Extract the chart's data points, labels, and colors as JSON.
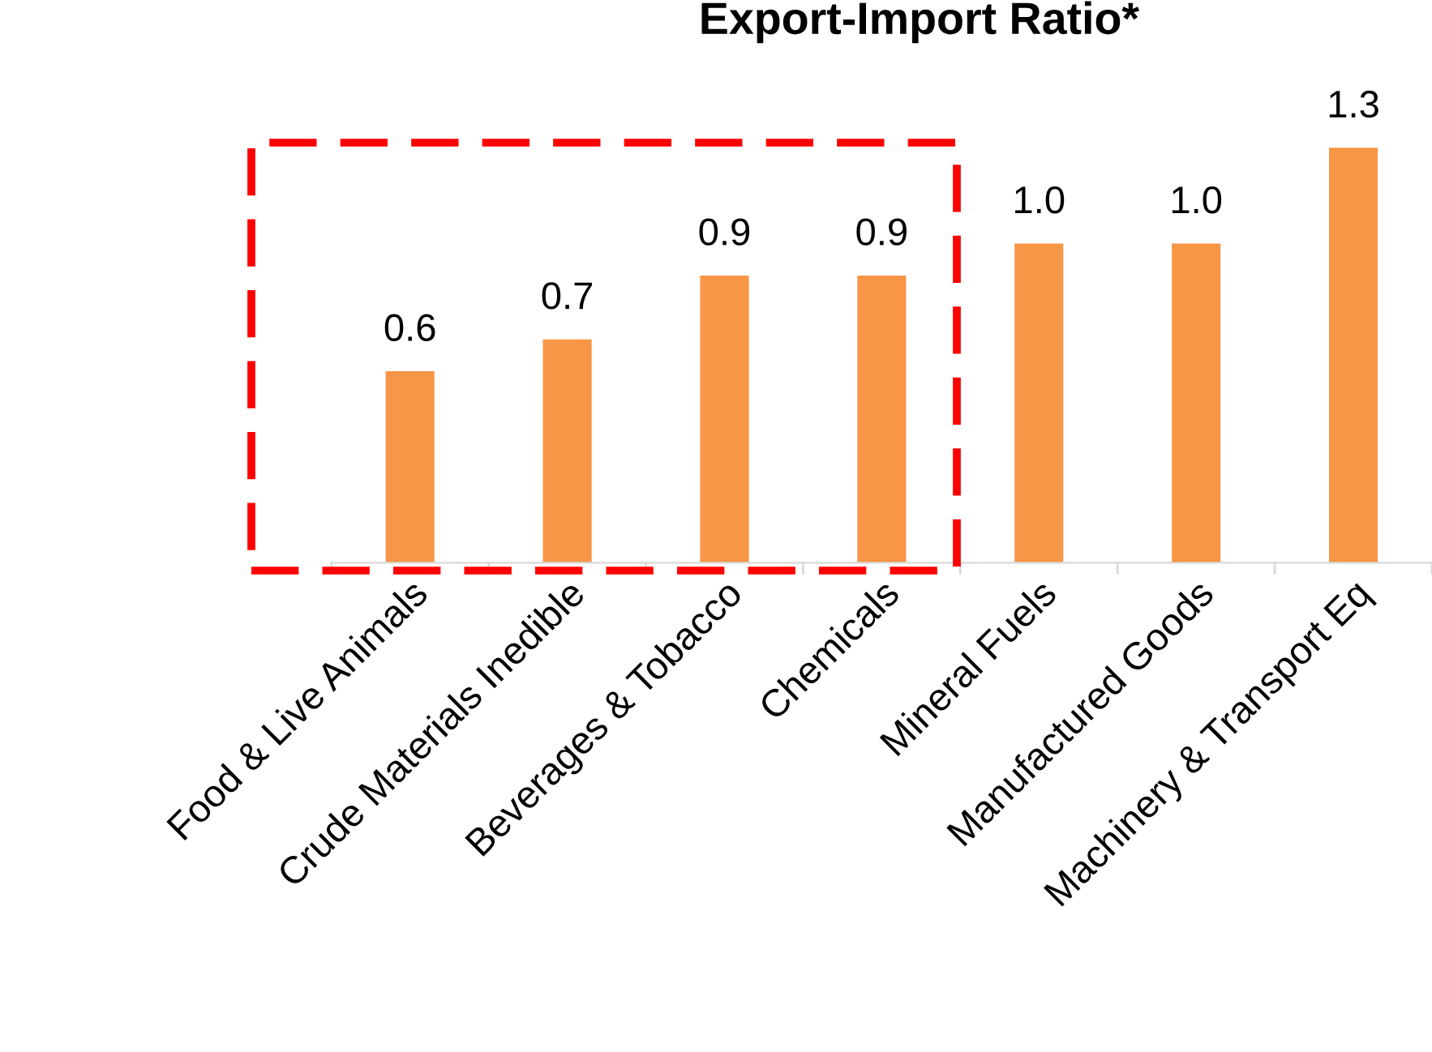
{
  "chart_data": {
    "type": "bar",
    "title": "Export-Import Ratio*",
    "categories": [
      "Food & Live Animals",
      "Crude Materials Inedible",
      "Beverages & Tobacco",
      "Chemicals",
      "Mineral Fuels",
      "Manufactured Goods",
      "Machinery & Transport Eq"
    ],
    "values": [
      0.6,
      0.7,
      0.9,
      0.9,
      1.0,
      1.0,
      1.3
    ],
    "color": "#f79646",
    "value_labels": [
      "0.6",
      "0.7",
      "0.9",
      "0.9",
      "1.0",
      "1.0",
      "1.3"
    ],
    "grid": false,
    "legend": false
  }
}
